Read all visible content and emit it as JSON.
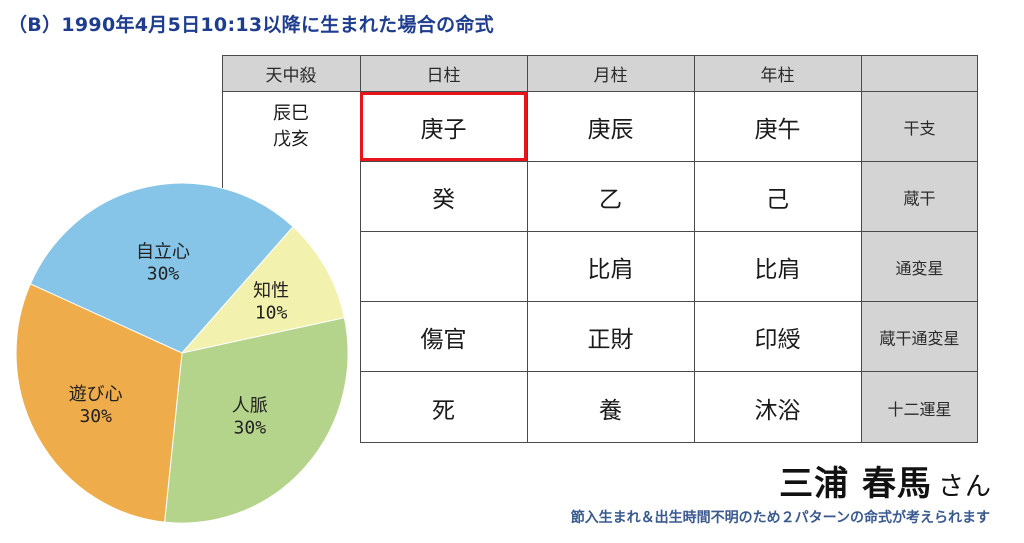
{
  "title": "（B）1990年4月5日10:13以降に生まれた場合の命式",
  "table": {
    "headers": [
      "天中殺",
      "日柱",
      "月柱",
      "年柱",
      ""
    ],
    "tenchusatsu": [
      "辰巳",
      "戊亥"
    ],
    "rows": [
      {
        "label": "干支",
        "day": "庚子",
        "month": "庚辰",
        "year": "庚午"
      },
      {
        "label": "蔵干",
        "day": "癸",
        "month": "乙",
        "year": "己"
      },
      {
        "label": "通変星",
        "day": "",
        "month": "比肩",
        "year": "比肩"
      },
      {
        "label": "蔵干通変星",
        "day": "傷官",
        "month": "正財",
        "year": "印綬"
      },
      {
        "label": "十二運星",
        "day": "死",
        "month": "養",
        "year": "沐浴"
      }
    ]
  },
  "pie": {
    "slices": [
      {
        "name": "自立心",
        "pct_label": "30%",
        "value": 30,
        "color": "#86c5e8"
      },
      {
        "name": "知性",
        "pct_label": "10%",
        "value": 10,
        "color": "#f2f1ae"
      },
      {
        "name": "人脈",
        "pct_label": "30%",
        "value": 30,
        "color": "#b5d48b"
      },
      {
        "name": "遊び心",
        "pct_label": "30%",
        "value": 30,
        "color": "#eead4a"
      }
    ]
  },
  "person": {
    "name": "三浦 春馬",
    "honorific": "さん"
  },
  "footnote": "節入生まれ＆出生時間不明のため２パターンの命式が考えられます"
}
